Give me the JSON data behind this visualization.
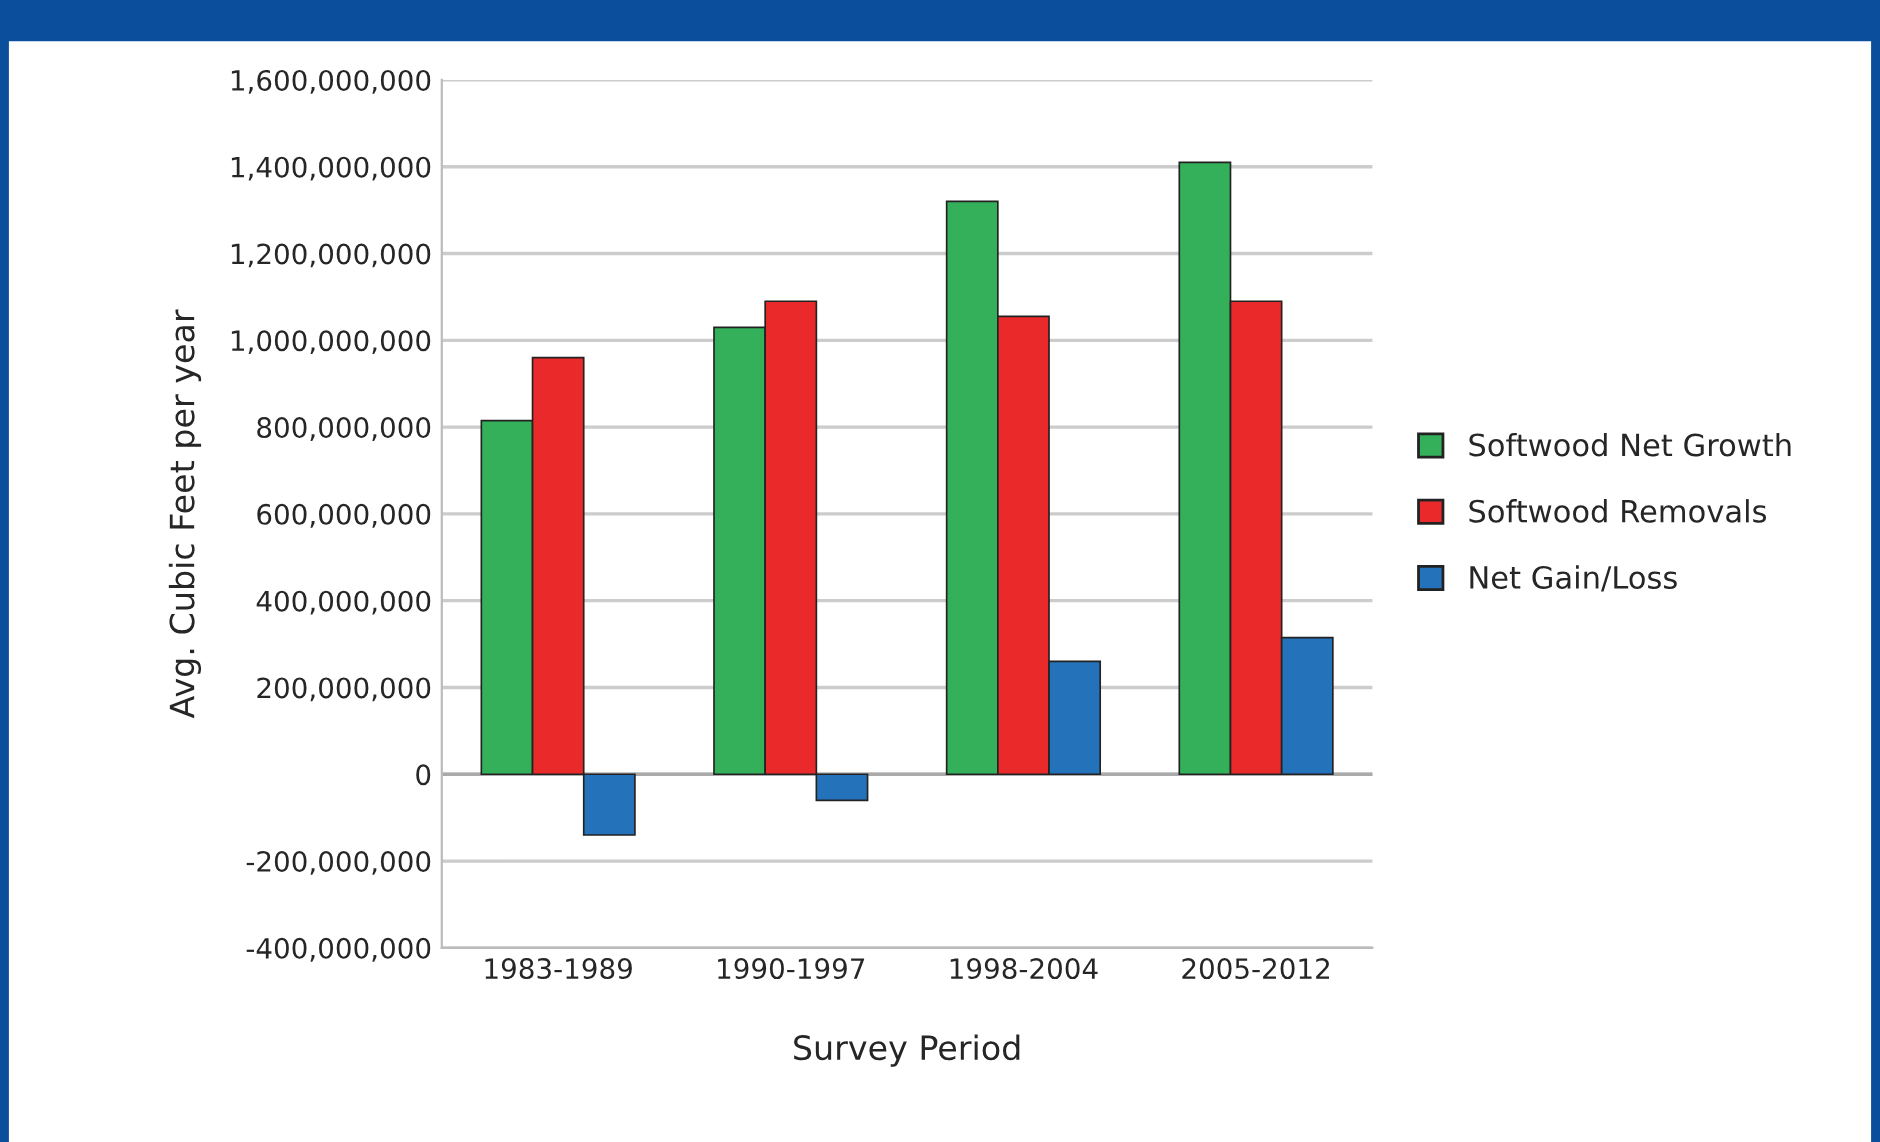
{
  "chart_data": {
    "type": "bar",
    "xlabel": "Survey Period",
    "ylabel": "Avg. Cubic Feet per year",
    "categories": [
      "1983-1989",
      "1990-1997",
      "1998-2004",
      "2005-2012"
    ],
    "series": [
      {
        "name": "Softwood Net Growth",
        "color": "#34b05a",
        "values": [
          815000000,
          1030000000,
          1320000000,
          1410000000
        ]
      },
      {
        "name": "Softwood Removals",
        "color": "#ea2a2a",
        "values": [
          960000000,
          1090000000,
          1055000000,
          1090000000
        ]
      },
      {
        "name": "Net Gain/Loss",
        "color": "#2473ba",
        "values": [
          -140000000,
          -60000000,
          260000000,
          315000000
        ]
      }
    ],
    "ylim": [
      -400000000,
      1600000000
    ],
    "yticks": [
      {
        "value": -400000000,
        "label": "-400,000,000"
      },
      {
        "value": -200000000,
        "label": "-200,000,000"
      },
      {
        "value": 0,
        "label": "0"
      },
      {
        "value": 200000000,
        "label": "200,000,000"
      },
      {
        "value": 400000000,
        "label": "400,000,000"
      },
      {
        "value": 600000000,
        "label": "600,000,000"
      },
      {
        "value": 800000000,
        "label": "800,000,000"
      },
      {
        "value": 1000000000,
        "label": "1,000,000,000"
      },
      {
        "value": 1200000000,
        "label": "1,200,000,000"
      },
      {
        "value": 1400000000,
        "label": "1,400,000,000"
      },
      {
        "value": 1600000000,
        "label": "1,600,000,000"
      }
    ],
    "grid": "y",
    "legend": "right"
  }
}
